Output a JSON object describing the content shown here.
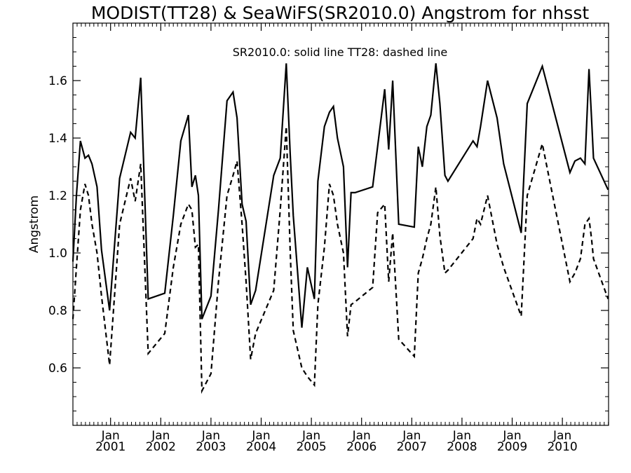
{
  "chart_data": {
    "type": "line",
    "title": "MODIST(TT28) & SeaWiFS(SR2010.0)  Angstrom for nhsst",
    "annotation": "SR2010.0: solid line   TT28: dashed line",
    "ylabel": "Angstrom",
    "xlabel": "",
    "ylim": [
      0.4,
      1.8
    ],
    "xlim": [
      2000.25,
      2010.92
    ],
    "y_ticks": [
      "0.6",
      "0.8",
      "1.0",
      "1.2",
      "1.4",
      "1.6"
    ],
    "x_ticks": [
      {
        "month": "Jan",
        "year": "2001",
        "value": 2001.0
      },
      {
        "month": "Jan",
        "year": "2002",
        "value": 2002.0
      },
      {
        "month": "Jan",
        "year": "2003",
        "value": 2003.0
      },
      {
        "month": "Jan",
        "year": "2004",
        "value": 2004.0
      },
      {
        "month": "Jan",
        "year": "2005",
        "value": 2005.0
      },
      {
        "month": "Jan",
        "year": "2006",
        "value": 2006.0
      },
      {
        "month": "Jan",
        "year": "2007",
        "value": 2007.0
      },
      {
        "month": "Jan",
        "year": "2008",
        "value": 2008.0
      },
      {
        "month": "Jan",
        "year": "2009",
        "value": 2009.0
      },
      {
        "month": "Jan",
        "year": "2010",
        "value": 2010.0
      }
    ],
    "series": [
      {
        "name": "SR2010.0",
        "style": "solid",
        "x": [
          2000.25,
          2000.32,
          2000.4,
          2000.49,
          2000.56,
          2000.63,
          2000.73,
          2000.82,
          2000.98,
          2001.18,
          2001.4,
          2001.49,
          2001.6,
          2001.75,
          2002.08,
          2002.25,
          2002.4,
          2002.55,
          2002.62,
          2002.69,
          2002.75,
          2002.82,
          2003.0,
          2003.15,
          2003.32,
          2003.44,
          2003.52,
          2003.62,
          2003.7,
          2003.79,
          2003.89,
          2004.25,
          2004.38,
          2004.5,
          2004.58,
          2004.64,
          2004.81,
          2004.92,
          2005.06,
          2005.13,
          2005.26,
          2005.36,
          2005.44,
          2005.52,
          2005.64,
          2005.72,
          2005.79,
          2005.87,
          2006.22,
          2006.32,
          2006.46,
          2006.54,
          2006.62,
          2006.74,
          2007.05,
          2007.13,
          2007.21,
          2007.3,
          2007.38,
          2007.48,
          2007.56,
          2007.66,
          2007.72,
          2008.22,
          2008.3,
          2008.37,
          2008.51,
          2008.7,
          2008.83,
          2009.18,
          2009.3,
          2009.6,
          2010.15,
          2010.25,
          2010.36,
          2010.45,
          2010.53,
          2010.58,
          2010.62,
          2010.91
        ],
        "y": [
          0.97,
          1.2,
          1.39,
          1.33,
          1.34,
          1.31,
          1.23,
          1.01,
          0.8,
          1.26,
          1.42,
          1.4,
          1.61,
          0.84,
          0.86,
          1.13,
          1.39,
          1.48,
          1.23,
          1.27,
          1.2,
          0.77,
          0.85,
          1.15,
          1.53,
          1.56,
          1.47,
          1.17,
          1.11,
          0.82,
          0.87,
          1.27,
          1.33,
          1.66,
          1.34,
          1.13,
          0.74,
          0.95,
          0.84,
          1.25,
          1.44,
          1.49,
          1.51,
          1.4,
          1.3,
          0.95,
          1.21,
          1.21,
          1.23,
          1.37,
          1.57,
          1.36,
          1.6,
          1.1,
          1.09,
          1.37,
          1.3,
          1.44,
          1.48,
          1.66,
          1.52,
          1.27,
          1.25,
          1.39,
          1.37,
          1.44,
          1.6,
          1.47,
          1.31,
          1.07,
          1.52,
          1.65,
          1.28,
          1.32,
          1.33,
          1.31,
          1.64,
          1.47,
          1.33,
          1.22
        ]
      },
      {
        "name": "TT28",
        "style": "dashed",
        "x": [
          2000.25,
          2000.32,
          2000.4,
          2000.49,
          2000.56,
          2000.63,
          2000.73,
          2000.82,
          2000.98,
          2001.18,
          2001.4,
          2001.49,
          2001.6,
          2001.75,
          2002.08,
          2002.25,
          2002.4,
          2002.55,
          2002.62,
          2002.69,
          2002.75,
          2002.82,
          2003.0,
          2003.15,
          2003.32,
          2003.44,
          2003.52,
          2003.62,
          2003.7,
          2003.79,
          2003.89,
          2004.25,
          2004.38,
          2004.5,
          2004.58,
          2004.64,
          2004.81,
          2004.92,
          2005.06,
          2005.13,
          2005.26,
          2005.36,
          2005.44,
          2005.52,
          2005.64,
          2005.72,
          2005.79,
          2005.87,
          2006.22,
          2006.32,
          2006.46,
          2006.54,
          2006.62,
          2006.74,
          2007.05,
          2007.13,
          2007.21,
          2007.3,
          2007.38,
          2007.48,
          2007.56,
          2007.66,
          2007.72,
          2008.22,
          2008.3,
          2008.37,
          2008.51,
          2008.7,
          2008.83,
          2009.18,
          2009.3,
          2009.6,
          2010.15,
          2010.25,
          2010.36,
          2010.45,
          2010.53,
          2010.58,
          2010.62,
          2010.91
        ],
        "y": [
          0.77,
          0.95,
          1.15,
          1.24,
          1.2,
          1.1,
          1.0,
          0.85,
          0.61,
          1.1,
          1.26,
          1.18,
          1.31,
          0.65,
          0.72,
          0.95,
          1.1,
          1.17,
          1.15,
          1.02,
          1.03,
          0.52,
          0.58,
          0.9,
          1.2,
          1.27,
          1.32,
          1.1,
          0.9,
          0.63,
          0.72,
          0.87,
          1.15,
          1.44,
          1.0,
          0.73,
          0.6,
          0.57,
          0.54,
          0.82,
          1.02,
          1.24,
          1.2,
          1.1,
          1.0,
          0.71,
          0.82,
          0.83,
          0.88,
          1.14,
          1.17,
          0.9,
          1.07,
          0.7,
          0.64,
          0.93,
          0.98,
          1.05,
          1.1,
          1.23,
          1.06,
          0.93,
          0.94,
          1.05,
          1.12,
          1.1,
          1.2,
          1.03,
          0.95,
          0.78,
          1.2,
          1.38,
          0.9,
          0.93,
          0.98,
          1.1,
          1.12,
          1.05,
          0.98,
          0.84
        ]
      }
    ],
    "grid": false,
    "axis_color": "#000000",
    "line_color": "#000000",
    "background": "#ffffff"
  }
}
